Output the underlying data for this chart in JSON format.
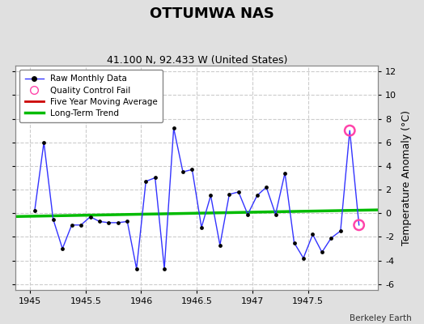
{
  "title": "OTTUMWA NAS",
  "subtitle": "41.100 N, 92.433 W (United States)",
  "attribution": "Berkeley Earth",
  "y_label": "Temperature Anomaly (°C)",
  "xlim": [
    1944.87,
    1948.13
  ],
  "ylim": [
    -6.5,
    12.5
  ],
  "yticks": [
    -6,
    -4,
    -2,
    0,
    2,
    4,
    6,
    8,
    10,
    12
  ],
  "xtick_vals": [
    1945,
    1945.5,
    1946,
    1946.5,
    1947,
    1947.5
  ],
  "xtick_labels": [
    "1945",
    "1945.5",
    "1946",
    "1946.5",
    "1947",
    "1947.5"
  ],
  "fig_bg_color": "#e0e0e0",
  "plot_bg_color": "#ffffff",
  "raw_x": [
    1945.042,
    1945.125,
    1945.208,
    1945.292,
    1945.375,
    1945.458,
    1945.542,
    1945.625,
    1945.708,
    1945.792,
    1945.875,
    1945.958,
    1946.042,
    1946.125,
    1946.208,
    1946.292,
    1946.375,
    1946.458,
    1946.542,
    1946.625,
    1946.708,
    1946.792,
    1946.875,
    1946.958,
    1947.042,
    1947.125,
    1947.208,
    1947.292,
    1947.375,
    1947.458,
    1947.542,
    1947.625,
    1947.708,
    1947.792,
    1947.875,
    1947.958
  ],
  "raw_y": [
    0.2,
    6.0,
    -0.5,
    -3.0,
    -1.0,
    -1.0,
    -0.3,
    -0.7,
    -0.8,
    -0.8,
    -0.7,
    -4.7,
    2.7,
    3.0,
    -4.7,
    7.2,
    3.5,
    3.7,
    -1.2,
    1.5,
    -2.7,
    1.6,
    1.8,
    -0.1,
    1.5,
    2.2,
    -0.1,
    3.4,
    -2.5,
    -3.8,
    -1.8,
    -3.3,
    -2.1,
    -1.5,
    7.0,
    -1.0
  ],
  "qc_fail_indices": [
    34,
    35
  ],
  "trend_x": [
    1944.87,
    1948.13
  ],
  "trend_y": [
    -0.28,
    0.28
  ],
  "line_color": "#3333ff",
  "dot_color": "#000000",
  "qc_color": "#ff44aa",
  "trend_color": "#00bb00",
  "moving_avg_color": "#cc0000",
  "grid_color": "#cccccc",
  "legend_bg": "#ffffff",
  "title_fontsize": 13,
  "subtitle_fontsize": 9,
  "tick_fontsize": 8,
  "ylabel_fontsize": 9
}
